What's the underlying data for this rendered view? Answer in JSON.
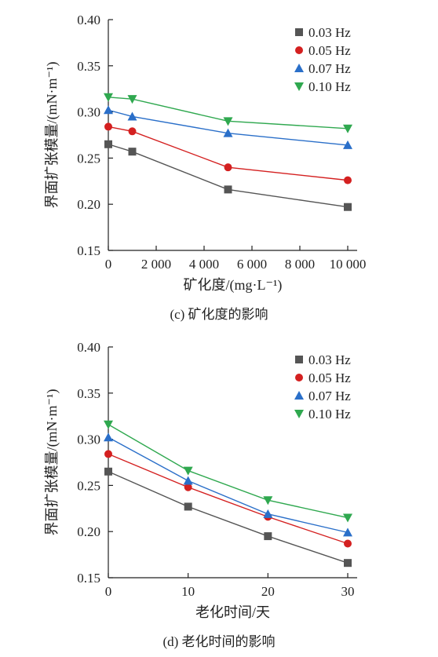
{
  "chart_data": [
    {
      "type": "line",
      "panel_id": "panel-c",
      "caption": "(c) 矿化度的影响",
      "xlabel": "矿化度/(mg·L⁻¹)",
      "ylabel": "界面扩张模量/(mN·m⁻¹)",
      "xlim": [
        0,
        10000
      ],
      "ylim": [
        0.15,
        0.4
      ],
      "x_ticks": [
        0,
        2000,
        4000,
        6000,
        8000,
        10000
      ],
      "x_tick_labels": [
        "0",
        "2 000",
        "4 000",
        "6 000",
        "8 000",
        "10 000"
      ],
      "y_ticks": [
        0.15,
        0.2,
        0.25,
        0.3,
        0.35,
        0.4
      ],
      "y_tick_labels": [
        "0.15",
        "0.20",
        "0.25",
        "0.30",
        "0.35",
        "0.40"
      ],
      "grid": false,
      "legend_position": "top-right",
      "x": [
        0,
        1000,
        5000,
        10000
      ],
      "series": [
        {
          "name": "0.03 Hz",
          "values": [
            0.265,
            0.257,
            0.216,
            0.197
          ],
          "color": "#555555",
          "marker": "square"
        },
        {
          "name": "0.05 Hz",
          "values": [
            0.284,
            0.279,
            0.24,
            0.226
          ],
          "color": "#d42020",
          "marker": "circle"
        },
        {
          "name": "0.07 Hz",
          "values": [
            0.302,
            0.295,
            0.277,
            0.264
          ],
          "color": "#2a6fc9",
          "marker": "triangle-up"
        },
        {
          "name": "0.10 Hz",
          "values": [
            0.316,
            0.314,
            0.29,
            0.282
          ],
          "color": "#2fa84f",
          "marker": "triangle-down"
        }
      ]
    },
    {
      "type": "line",
      "panel_id": "panel-d",
      "caption": "(d) 老化时间的影响",
      "xlabel": "老化时间/天",
      "ylabel": "界面扩张模量/(mN·m⁻¹)",
      "xlim": [
        0,
        30
      ],
      "ylim": [
        0.15,
        0.4
      ],
      "x_ticks": [
        0,
        10,
        20,
        30
      ],
      "x_tick_labels": [
        "0",
        "10",
        "20",
        "30"
      ],
      "y_ticks": [
        0.15,
        0.2,
        0.25,
        0.3,
        0.35,
        0.4
      ],
      "y_tick_labels": [
        "0.15",
        "0.20",
        "0.25",
        "0.30",
        "0.35",
        "0.40"
      ],
      "grid": false,
      "legend_position": "top-right",
      "x": [
        0,
        10,
        20,
        30
      ],
      "series": [
        {
          "name": "0.03 Hz",
          "values": [
            0.265,
            0.227,
            0.195,
            0.166
          ],
          "color": "#555555",
          "marker": "square"
        },
        {
          "name": "0.05 Hz",
          "values": [
            0.284,
            0.248,
            0.216,
            0.187
          ],
          "color": "#d42020",
          "marker": "circle"
        },
        {
          "name": "0.07 Hz",
          "values": [
            0.302,
            0.255,
            0.219,
            0.199
          ],
          "color": "#2a6fc9",
          "marker": "triangle-up"
        },
        {
          "name": "0.10 Hz",
          "values": [
            0.316,
            0.266,
            0.234,
            0.215
          ],
          "color": "#2fa84f",
          "marker": "triangle-down"
        }
      ]
    }
  ]
}
